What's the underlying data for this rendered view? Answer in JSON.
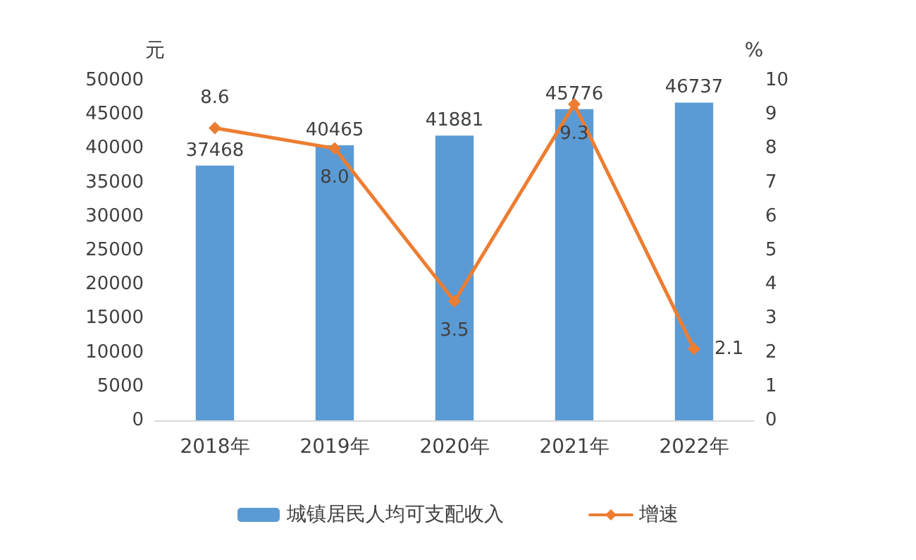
{
  "chart_data": {
    "type": "bar",
    "categories": [
      "2018年",
      "2019年",
      "2020年",
      "2021年",
      "2022年"
    ],
    "ylabel": "元",
    "y2label": "%",
    "ylim": [
      0,
      50000
    ],
    "yticks": [
      0,
      5000,
      10000,
      15000,
      20000,
      25000,
      30000,
      35000,
      40000,
      45000,
      50000
    ],
    "y2lim": [
      0,
      10
    ],
    "y2ticks": [
      0,
      1,
      2,
      3,
      4,
      5,
      6,
      7,
      8,
      9,
      10
    ],
    "series": [
      {
        "name": "城镇居民人均可支配收入",
        "color": "#5b9bd5",
        "values": [
          37468,
          40465,
          41881,
          45776,
          46737
        ]
      },
      {
        "name": "增速",
        "type": "line",
        "axis": "y2",
        "color": "#ed7d31",
        "marker": "diamond",
        "values": [
          8.6,
          8.0,
          3.5,
          9.3,
          2.1
        ],
        "value_labels": [
          "8.6",
          "8.0",
          "3.5",
          "9.3",
          "2.1"
        ]
      }
    ],
    "data_labels": true,
    "grid": false,
    "legend": "bottom"
  }
}
